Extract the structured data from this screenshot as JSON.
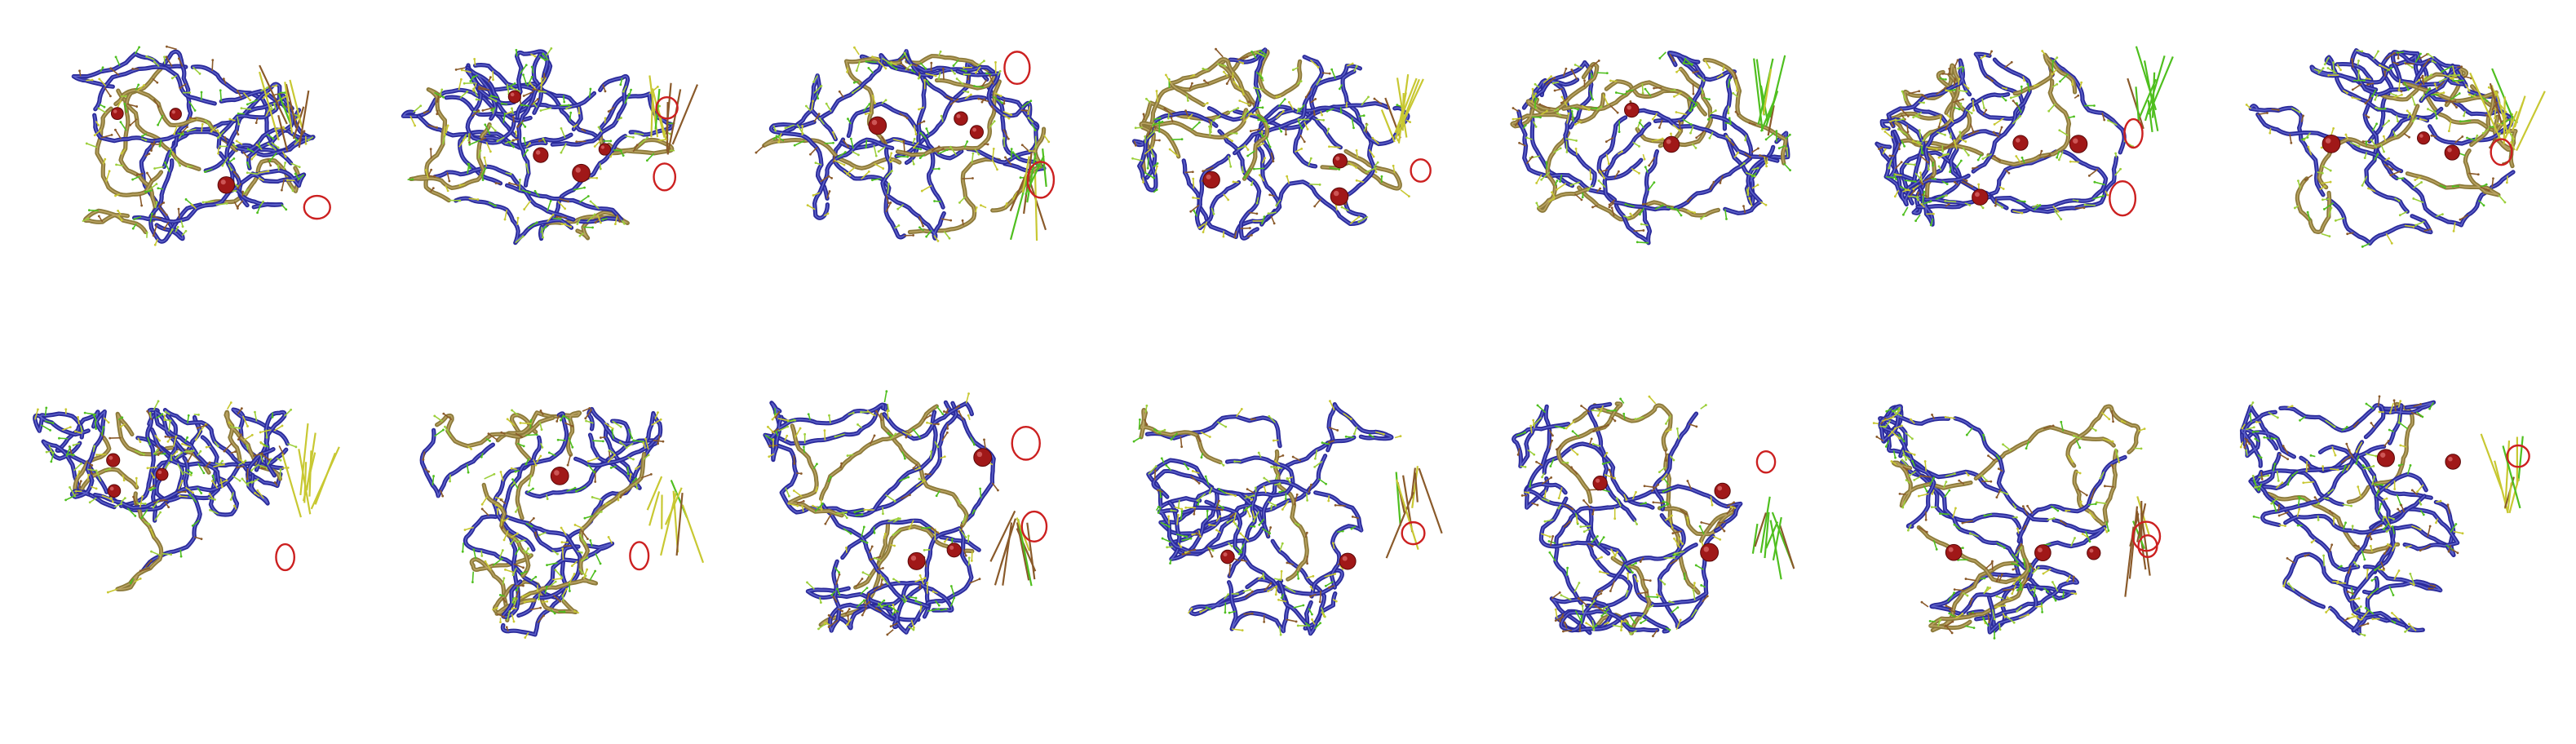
{
  "figure": {
    "rows": 2,
    "columns": 7,
    "colors": {
      "background": "#ffffff",
      "backbone_blue": "#2a2a9a",
      "backbone_gold": "#8c7a3a",
      "arrow_green": "#4fbf1f",
      "arrow_yellow": "#c8c832",
      "arrow_brown": "#8a5a2a",
      "sphere_red": "#a01818",
      "circle_red": "#cc2020"
    },
    "panels": [
      {
        "seed": 11,
        "shape": "round",
        "spheres": 3,
        "circles": 1,
        "long_arrows": "brown"
      },
      {
        "seed": 23,
        "shape": "round",
        "spheres": 4,
        "circles": 2,
        "long_arrows": "brown"
      },
      {
        "seed": 37,
        "shape": "round",
        "spheres": 3,
        "circles": 2,
        "long_arrows": "green"
      },
      {
        "seed": 41,
        "shape": "round",
        "spheres": 3,
        "circles": 1,
        "long_arrows": "yellow"
      },
      {
        "seed": 53,
        "shape": "round",
        "spheres": 2,
        "circles": 0,
        "long_arrows": "green"
      },
      {
        "seed": 67,
        "shape": "round",
        "spheres": 3,
        "circles": 2,
        "long_arrows": "green"
      },
      {
        "seed": 79,
        "shape": "round",
        "spheres": 3,
        "circles": 1,
        "long_arrows": "yellow"
      },
      {
        "seed": 83,
        "shape": "funnel",
        "spheres": 3,
        "circles": 1,
        "long_arrows": "yellow"
      },
      {
        "seed": 97,
        "shape": "funnel",
        "spheres": 1,
        "circles": 1,
        "long_arrows": "yellow"
      },
      {
        "seed": 103,
        "shape": "drop",
        "spheres": 3,
        "circles": 2,
        "long_arrows": "brown"
      },
      {
        "seed": 109,
        "shape": "drop",
        "spheres": 2,
        "circles": 1,
        "long_arrows": "brown"
      },
      {
        "seed": 127,
        "shape": "drop",
        "spheres": 3,
        "circles": 1,
        "long_arrows": "green"
      },
      {
        "seed": 131,
        "shape": "drop",
        "spheres": 3,
        "circles": 2,
        "long_arrows": "brown"
      },
      {
        "seed": 139,
        "shape": "drop",
        "spheres": 2,
        "circles": 1,
        "long_arrows": "yellow"
      }
    ]
  }
}
